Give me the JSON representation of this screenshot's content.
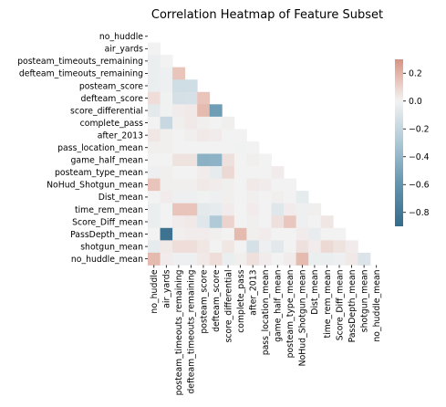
{
  "chart_data": {
    "type": "heatmap",
    "title": "Correlation Heatmap of Feature Subset",
    "variables": [
      "no_huddle",
      "air_yards",
      "posteam_timeouts_remaining",
      "defteam_timeouts_remaining",
      "posteam_score",
      "defteam_score",
      "score_differential",
      "complete_pass",
      "after_2013",
      "pass_location_mean",
      "game_half_mean",
      "posteam_type_mean",
      "NoHud_Shotgun_mean",
      "Dist_mean",
      "time_rem_mean",
      "Score_Diff_mean",
      "PassDepth_mean",
      "shotgun_mean",
      "no_huddle_mean"
    ],
    "mask": "upper-triangle-including-diagonal",
    "colormap": "diverging blue-white-red",
    "colorbar": {
      "min": -0.9,
      "max": 0.3,
      "ticks": [
        0.2,
        0.0,
        -0.2,
        -0.4,
        -0.6,
        -0.8
      ],
      "tick_labels": [
        "0.2",
        "0.0",
        "−0.2",
        "−0.4",
        "−0.6",
        "−0.8"
      ]
    },
    "lower_triangle": [
      [],
      [
        0.0
      ],
      [
        -0.03,
        0.0
      ],
      [
        -0.03,
        -0.02,
        0.15
      ],
      [
        -0.03,
        -0.02,
        -0.15,
        -0.15
      ],
      [
        0.07,
        -0.01,
        -0.13,
        -0.12,
        0.15
      ],
      [
        -0.06,
        -0.01,
        0.02,
        0.03,
        0.18,
        -0.55
      ],
      [
        0.0,
        -0.18,
        0.01,
        0.03,
        0.01,
        0.0,
        0.01
      ],
      [
        0.04,
        0.01,
        0.0,
        0.01,
        0.03,
        0.02,
        0.0,
        0.0
      ],
      [
        0.01,
        0.01,
        0.0,
        0.0,
        0.0,
        0.0,
        0.0,
        -0.01,
        0.0
      ],
      [
        0.0,
        0.0,
        0.05,
        0.05,
        -0.43,
        -0.42,
        0.06,
        0.0,
        0.01,
        0.0
      ],
      [
        -0.02,
        0.01,
        0.0,
        0.0,
        0.02,
        -0.05,
        0.08,
        0.0,
        0.0,
        0.0,
        0.02
      ],
      [
        0.15,
        0.01,
        0.01,
        0.01,
        0.03,
        0.02,
        0.01,
        0.0,
        0.03,
        0.02,
        0.0,
        0.0
      ],
      [
        0.0,
        0.02,
        -0.02,
        -0.02,
        -0.01,
        -0.02,
        0.01,
        0.0,
        0.01,
        0.0,
        0.01,
        0.0,
        -0.05
      ],
      [
        -0.03,
        0.0,
        0.15,
        0.15,
        -0.06,
        -0.05,
        0.02,
        0.0,
        0.02,
        0.0,
        -0.08,
        0.02,
        -0.02,
        0.01
      ],
      [
        -0.03,
        0.0,
        0.02,
        0.03,
        -0.08,
        -0.28,
        0.1,
        0.0,
        0.01,
        0.0,
        0.06,
        0.14,
        -0.02,
        0.0,
        0.04
      ],
      [
        0.0,
        -0.85,
        0.01,
        0.02,
        0.02,
        0.01,
        0.0,
        0.18,
        0.01,
        0.02,
        0.0,
        0.0,
        0.02,
        -0.04,
        0.0,
        0.0
      ],
      [
        -0.05,
        0.03,
        0.07,
        0.07,
        0.04,
        0.0,
        0.04,
        0.0,
        -0.12,
        -0.02,
        -0.07,
        0.0,
        0.06,
        0.02,
        0.08,
        0.05,
        0.02
      ],
      [
        0.18,
        0.02,
        -0.02,
        -0.02,
        0.03,
        0.07,
        -0.03,
        0.01,
        0.06,
        0.02,
        0.0,
        0.02,
        0.18,
        -0.03,
        -0.03,
        -0.02,
        0.03,
        -0.1
      ]
    ]
  }
}
